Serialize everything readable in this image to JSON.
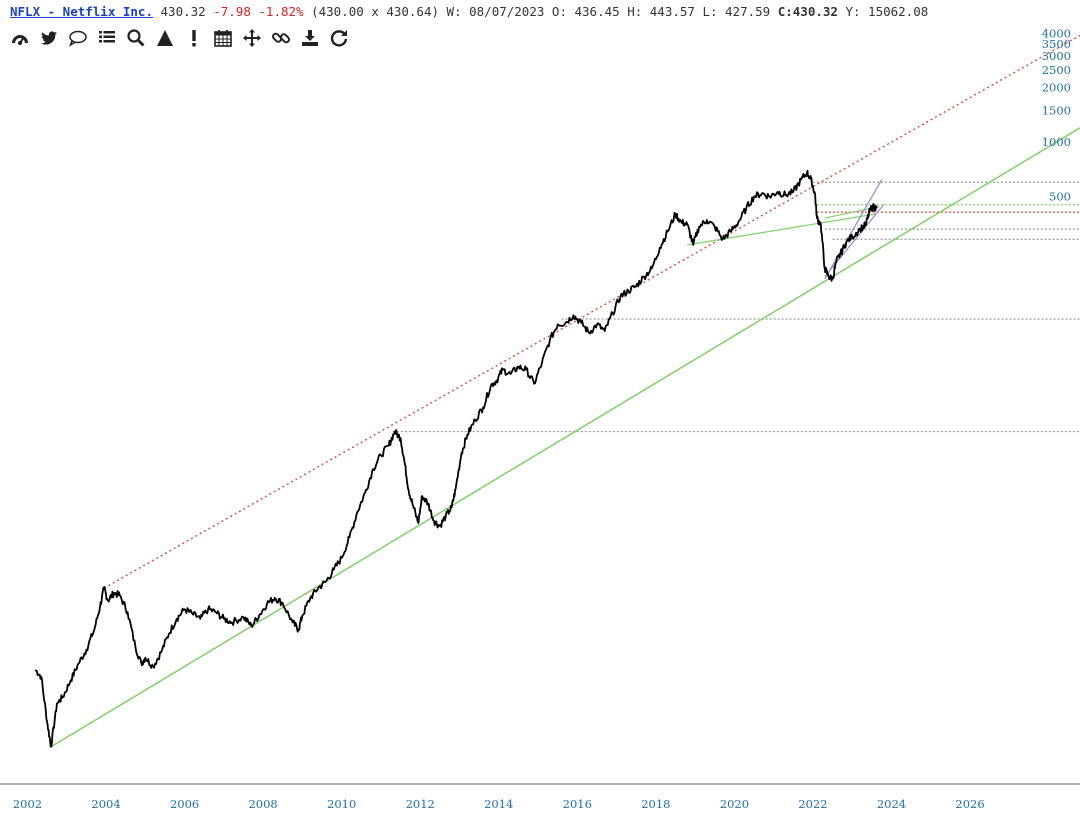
{
  "header": {
    "symbol": "NFLX - Netflix Inc.",
    "last": "430.32",
    "change": "-7.98",
    "change_pct": "-1.82%",
    "bid_ask": "(430.00 x 430.64)",
    "week": "W: 08/07/2023",
    "open": "O: 436.45",
    "high": "H: 443.57",
    "low": "L: 427.59",
    "close_label": "C:",
    "close": "430.32",
    "y_value": "Y: 15062.08"
  },
  "toolbar": {
    "items": [
      {
        "name": "dashboard-icon"
      },
      {
        "name": "twitter-icon"
      },
      {
        "name": "comment-icon"
      },
      {
        "name": "list-icon"
      },
      {
        "name": "search-icon"
      },
      {
        "name": "triangle-icon"
      },
      {
        "name": "exclamation-icon"
      },
      {
        "name": "calendar-icon"
      },
      {
        "name": "move-icon"
      },
      {
        "name": "link-icon"
      },
      {
        "name": "download-icon"
      },
      {
        "name": "refresh-icon"
      }
    ]
  },
  "colors": {
    "price": "#000000",
    "axis_text": "#1f6fb2",
    "support_line": "#7fd16a",
    "resistance_line": "#e04a3a",
    "level_line": "#999999",
    "channel_line": "#8a8fd6"
  },
  "chart_data": {
    "type": "line",
    "scale": "log",
    "x_ticks": [
      "2002",
      "2004",
      "2006",
      "2008",
      "2010",
      "2012",
      "2014",
      "2016",
      "2018",
      "2020",
      "2022",
      "2024",
      "2026"
    ],
    "y_ticks": [
      {
        "value": 4000,
        "label": "4000"
      },
      {
        "value": 3500,
        "label": "3500"
      },
      {
        "value": 3000,
        "label": "3000"
      },
      {
        "value": 2500,
        "label": "2500"
      },
      {
        "value": 2000,
        "label": "2000"
      },
      {
        "value": 1500,
        "label": "1500"
      },
      {
        "value": 1000,
        "label": "1000"
      },
      {
        "value": 500,
        "label": "500"
      }
    ],
    "xlim": [
      2001.3,
      2028.8
    ],
    "ylim": [
      0.28,
      4450
    ],
    "series": [
      {
        "points": [
          [
            2002.2,
            1.2
          ],
          [
            2002.35,
            1.1
          ],
          [
            2002.5,
            0.62
          ],
          [
            2002.6,
            0.45
          ],
          [
            2002.75,
            0.78
          ],
          [
            2002.9,
            0.85
          ],
          [
            2003.1,
            1.05
          ],
          [
            2003.3,
            1.3
          ],
          [
            2003.5,
            1.55
          ],
          [
            2003.7,
            2.0
          ],
          [
            2003.85,
            2.7
          ],
          [
            2003.95,
            3.4
          ],
          [
            2004.05,
            2.9
          ],
          [
            2004.2,
            3.2
          ],
          [
            2004.35,
            3.1
          ],
          [
            2004.55,
            2.5
          ],
          [
            2004.75,
            1.6
          ],
          [
            2004.9,
            1.3
          ],
          [
            2005.0,
            1.4
          ],
          [
            2005.2,
            1.25
          ],
          [
            2005.4,
            1.5
          ],
          [
            2005.6,
            1.9
          ],
          [
            2005.8,
            2.3
          ],
          [
            2006.0,
            2.6
          ],
          [
            2006.2,
            2.45
          ],
          [
            2006.4,
            2.3
          ],
          [
            2006.6,
            2.6
          ],
          [
            2006.8,
            2.5
          ],
          [
            2007.0,
            2.3
          ],
          [
            2007.2,
            2.2
          ],
          [
            2007.5,
            2.35
          ],
          [
            2007.7,
            2.1
          ],
          [
            2007.9,
            2.4
          ],
          [
            2008.1,
            2.8
          ],
          [
            2008.3,
            3.0
          ],
          [
            2008.5,
            2.8
          ],
          [
            2008.75,
            2.2
          ],
          [
            2008.9,
            2.0
          ],
          [
            2009.0,
            2.4
          ],
          [
            2009.2,
            3.0
          ],
          [
            2009.4,
            3.4
          ],
          [
            2009.6,
            3.7
          ],
          [
            2009.8,
            4.3
          ],
          [
            2010.0,
            5.0
          ],
          [
            2010.2,
            6.5
          ],
          [
            2010.4,
            9.0
          ],
          [
            2010.6,
            11.5
          ],
          [
            2010.8,
            15.5
          ],
          [
            2011.0,
            18.5
          ],
          [
            2011.2,
            21.0
          ],
          [
            2011.35,
            25.0
          ],
          [
            2011.5,
            23.0
          ],
          [
            2011.6,
            17.0
          ],
          [
            2011.7,
            12.0
          ],
          [
            2011.8,
            10.0
          ],
          [
            2011.95,
            7.8
          ],
          [
            2012.05,
            11.0
          ],
          [
            2012.2,
            10.0
          ],
          [
            2012.35,
            8.0
          ],
          [
            2012.5,
            7.5
          ],
          [
            2012.65,
            8.5
          ],
          [
            2012.8,
            9.5
          ],
          [
            2012.9,
            12.0
          ],
          [
            2013.05,
            19.0
          ],
          [
            2013.2,
            24.0
          ],
          [
            2013.4,
            29.0
          ],
          [
            2013.6,
            34.0
          ],
          [
            2013.8,
            45.0
          ],
          [
            2013.95,
            48.0
          ],
          [
            2014.1,
            55.0
          ],
          [
            2014.3,
            52.0
          ],
          [
            2014.5,
            57.0
          ],
          [
            2014.7,
            55.0
          ],
          [
            2014.9,
            46.0
          ],
          [
            2015.1,
            60.0
          ],
          [
            2015.3,
            80.0
          ],
          [
            2015.5,
            98.0
          ],
          [
            2015.7,
            100.0
          ],
          [
            2015.9,
            110.0
          ],
          [
            2016.1,
            100.0
          ],
          [
            2016.3,
            88.0
          ],
          [
            2016.5,
            98.0
          ],
          [
            2016.7,
            90.0
          ],
          [
            2016.9,
            113.0
          ],
          [
            2017.1,
            140.0
          ],
          [
            2017.3,
            150.0
          ],
          [
            2017.5,
            160.0
          ],
          [
            2017.7,
            180.0
          ],
          [
            2017.9,
            200.0
          ],
          [
            2018.1,
            260.0
          ],
          [
            2018.3,
            320.0
          ],
          [
            2018.5,
            400.0
          ],
          [
            2018.65,
            360.0
          ],
          [
            2018.8,
            350.0
          ],
          [
            2018.95,
            270.0
          ],
          [
            2019.1,
            340.0
          ],
          [
            2019.3,
            370.0
          ],
          [
            2019.5,
            340.0
          ],
          [
            2019.7,
            290.0
          ],
          [
            2019.9,
            320.0
          ],
          [
            2020.1,
            360.0
          ],
          [
            2020.3,
            430.0
          ],
          [
            2020.5,
            500.0
          ],
          [
            2020.7,
            520.0
          ],
          [
            2020.9,
            500.0
          ],
          [
            2021.1,
            530.0
          ],
          [
            2021.3,
            510.0
          ],
          [
            2021.5,
            530.0
          ],
          [
            2021.7,
            620.0
          ],
          [
            2021.85,
            680.0
          ],
          [
            2021.95,
            620.0
          ],
          [
            2022.05,
            520.0
          ],
          [
            2022.1,
            380.0
          ],
          [
            2022.2,
            350.0
          ],
          [
            2022.3,
            200.0
          ],
          [
            2022.4,
            180.0
          ],
          [
            2022.5,
            175.0
          ],
          [
            2022.6,
            220.0
          ],
          [
            2022.7,
            240.0
          ],
          [
            2022.85,
            280.0
          ],
          [
            2023.0,
            300.0
          ],
          [
            2023.2,
            330.0
          ],
          [
            2023.35,
            350.0
          ],
          [
            2023.45,
            420.0
          ],
          [
            2023.55,
            440.0
          ],
          [
            2023.62,
            430.32
          ]
        ]
      }
    ],
    "trendlines": [
      {
        "kind": "support",
        "from": [
          2002.6,
          0.45
        ],
        "to": [
          2028.8,
          1200
        ]
      },
      {
        "kind": "resistance",
        "from": [
          2003.95,
          3.4
        ],
        "to": [
          2028.8,
          3900
        ]
      },
      {
        "kind": "trend",
        "from": [
          2018.8,
          270
        ],
        "to": [
          2023.6,
          400
        ]
      },
      {
        "kind": "trend",
        "from": [
          2022.3,
          380
        ],
        "to": [
          2023.7,
          440
        ]
      },
      {
        "kind": "channel",
        "from": [
          2022.3,
          175
        ],
        "to": [
          2023.75,
          620
        ]
      },
      {
        "kind": "channel",
        "from": [
          2022.3,
          180
        ],
        "to": [
          2023.8,
          450
        ]
      }
    ],
    "levels": [
      {
        "value": 600,
        "style": "dotted-grey",
        "from_x": 2022.0
      },
      {
        "value": 450,
        "style": "dotted-green",
        "from_x": 2022.1
      },
      {
        "value": 410,
        "style": "dotted-red",
        "from_x": 2022.1
      },
      {
        "value": 330,
        "style": "dotted-grey",
        "from_x": 2022.3
      },
      {
        "value": 290,
        "style": "dotted-grey",
        "from_x": 2022.5
      },
      {
        "value": 105,
        "style": "dotted-grey",
        "from_x": 2015.6
      },
      {
        "value": 25,
        "style": "dotted-grey",
        "from_x": 2011.3
      }
    ]
  }
}
